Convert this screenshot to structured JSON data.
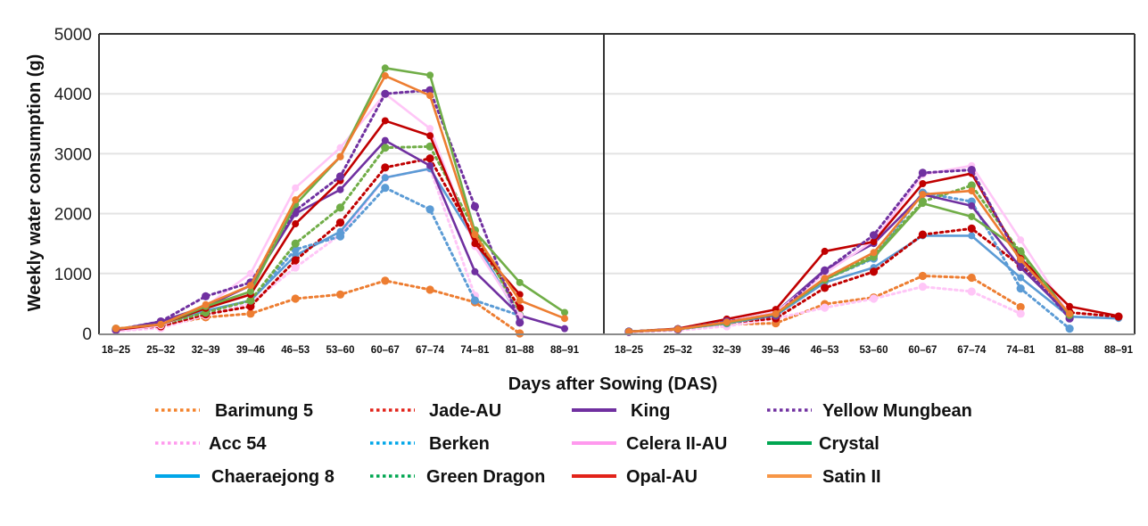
{
  "chart_data": {
    "type": "line",
    "ylabel": "Weekly water consumption (g)",
    "xlabel": "Days after Sowing (DAS)",
    "ylim": [
      0,
      5000
    ],
    "yticks": [
      0,
      1000,
      2000,
      3000,
      4000,
      5000
    ],
    "grid": true,
    "legend_position": "bottom",
    "categories": [
      "18–25",
      "25–32",
      "32–39",
      "39–46",
      "46–53",
      "53–60",
      "60–67",
      "67–74",
      "74–81",
      "81–88",
      "88–91"
    ],
    "legend": [
      {
        "name": "Barimung 5",
        "color": "#f4822b",
        "style": "dotted"
      },
      {
        "name": "Jade-AU",
        "color": "#e2231a",
        "style": "dotted"
      },
      {
        "name": "King",
        "color": "#7030a0",
        "style": "solid"
      },
      {
        "name": "Yellow Mungbean",
        "color": "#7030a0",
        "style": "dotted"
      },
      {
        "name": "Acc 54",
        "color": "#ff99ee",
        "style": "dotted"
      },
      {
        "name": "Berken",
        "color": "#00a6e8",
        "style": "dotted"
      },
      {
        "name": "Celera II-AU",
        "color": "#ff99ee",
        "style": "solid"
      },
      {
        "name": "Crystal",
        "color": "#00a651",
        "style": "solid"
      },
      {
        "name": "Chaeraejong 8",
        "color": "#00a6e8",
        "style": "solid"
      },
      {
        "name": "Green Dragon",
        "color": "#00a651",
        "style": "dotted"
      },
      {
        "name": "Opal-AU",
        "color": "#e2231a",
        "style": "solid"
      },
      {
        "name": "Satin II",
        "color": "#f79646",
        "style": "solid"
      }
    ],
    "panels": [
      {
        "name": "left",
        "series": [
          {
            "name": "Barimung 5",
            "color": "#ed7d31",
            "style": "dotted",
            "values": [
              80,
              130,
              270,
              330,
              580,
              650,
              880,
              730,
              520,
              0,
              null
            ]
          },
          {
            "name": "Acc 54",
            "color": "#ffc6f7",
            "style": "dotted",
            "values": [
              40,
              90,
              300,
              500,
              1100,
              1650,
              2600,
              2750,
              630,
              null,
              null
            ]
          },
          {
            "name": "Chaeraejong 8",
            "color": "#5b9bd5",
            "style": "solid",
            "values": [
              60,
              150,
              380,
              550,
              1300,
              1700,
              2600,
              2750,
              1550,
              250,
              null
            ]
          },
          {
            "name": "Jade-AU",
            "color": "#c00000",
            "style": "dotted",
            "values": [
              60,
              120,
              320,
              450,
              1220,
              1850,
              2770,
              2920,
              1600,
              420,
              null
            ]
          },
          {
            "name": "Berken",
            "color": "#5b9bd5",
            "style": "dotted",
            "values": [
              70,
              150,
              350,
              550,
              1400,
              1620,
              2430,
              2070,
              550,
              300,
              null
            ]
          },
          {
            "name": "Green Dragon",
            "color": "#70ad47",
            "style": "dotted",
            "values": [
              70,
              150,
              350,
              550,
              1500,
              2100,
              3100,
              3120,
              1720,
              300,
              null
            ]
          },
          {
            "name": "King",
            "color": "#7030a0",
            "style": "solid",
            "values": [
              60,
              200,
              450,
              800,
              2000,
              2400,
              3220,
              2800,
              1030,
              300,
              80
            ]
          },
          {
            "name": "Celera II-AU",
            "color": "#ffc6f7",
            "style": "solid",
            "values": [
              40,
              130,
              450,
              1000,
              2430,
              3100,
              4000,
              3420,
              1450,
              300,
              null
            ]
          },
          {
            "name": "Opal-AU",
            "color": "#c00000",
            "style": "solid",
            "values": [
              60,
              150,
              420,
              650,
              1830,
              2550,
              3550,
              3300,
              1500,
              650,
              null
            ]
          },
          {
            "name": "Yellow Mungbean",
            "color": "#7030a0",
            "style": "dotted",
            "values": [
              60,
              200,
              620,
              850,
              2050,
              2620,
              4000,
              4060,
              2120,
              180,
              null
            ]
          },
          {
            "name": "Crystal",
            "color": "#70ad47",
            "style": "solid",
            "values": [
              80,
              150,
              450,
              700,
              2150,
              2950,
              4430,
              4310,
              1700,
              850,
              350
            ]
          },
          {
            "name": "Satin II",
            "color": "#ed7d31",
            "style": "solid",
            "values": [
              80,
              150,
              480,
              800,
              2230,
              2950,
              4300,
              3970,
              1650,
              550,
              250
            ]
          }
        ]
      },
      {
        "name": "right",
        "series": [
          {
            "name": "Barimung 5",
            "color": "#ed7d31",
            "style": "dotted",
            "values": [
              30,
              60,
              150,
              170,
              490,
              600,
              960,
              930,
              440,
              null,
              null
            ]
          },
          {
            "name": "Acc 54",
            "color": "#ffc6f7",
            "style": "dotted",
            "values": [
              20,
              50,
              120,
              250,
              430,
              580,
              780,
              700,
              330,
              null,
              null
            ]
          },
          {
            "name": "Chaeraejong 8",
            "color": "#5b9bd5",
            "style": "solid",
            "values": [
              30,
              70,
              170,
              300,
              850,
              1100,
              1630,
              1630,
              930,
              280,
              250
            ]
          },
          {
            "name": "Jade-AU",
            "color": "#c00000",
            "style": "dotted",
            "values": [
              30,
              70,
              180,
              250,
              760,
              1030,
              1650,
              1750,
              1130,
              350,
              280
            ]
          },
          {
            "name": "Berken",
            "color": "#5b9bd5",
            "style": "dotted",
            "values": [
              30,
              70,
              170,
              300,
              900,
              1250,
              2350,
              2200,
              750,
              80,
              null
            ]
          },
          {
            "name": "Green Dragon",
            "color": "#70ad47",
            "style": "dotted",
            "values": [
              30,
              70,
              180,
              320,
              900,
              1300,
              2200,
              2470,
              1350,
              300,
              null
            ]
          },
          {
            "name": "King",
            "color": "#7030a0",
            "style": "solid",
            "values": [
              30,
              70,
              200,
              350,
              1060,
              1500,
              2320,
              2130,
              1100,
              300,
              null
            ]
          },
          {
            "name": "Celera II-AU",
            "color": "#ffc6f7",
            "style": "solid",
            "values": [
              30,
              70,
              200,
              350,
              1000,
              1550,
              2650,
              2800,
              1560,
              300,
              null
            ]
          },
          {
            "name": "Opal-AU",
            "color": "#c00000",
            "style": "solid",
            "values": [
              30,
              80,
              240,
              400,
              1370,
              1530,
              2500,
              2670,
              1250,
              450,
              290
            ]
          },
          {
            "name": "Yellow Mungbean",
            "color": "#7030a0",
            "style": "dotted",
            "values": [
              30,
              70,
              200,
              300,
              1050,
              1640,
              2680,
              2730,
              1200,
              250,
              null
            ]
          },
          {
            "name": "Crystal",
            "color": "#70ad47",
            "style": "solid",
            "values": [
              30,
              70,
              180,
              320,
              900,
              1270,
              2170,
              1950,
              1380,
              300,
              null
            ]
          },
          {
            "name": "Satin II",
            "color": "#ed7d31",
            "style": "solid",
            "values": [
              30,
              70,
              190,
              330,
              920,
              1350,
              2320,
              2380,
              1230,
              330,
              null
            ]
          }
        ]
      }
    ]
  }
}
